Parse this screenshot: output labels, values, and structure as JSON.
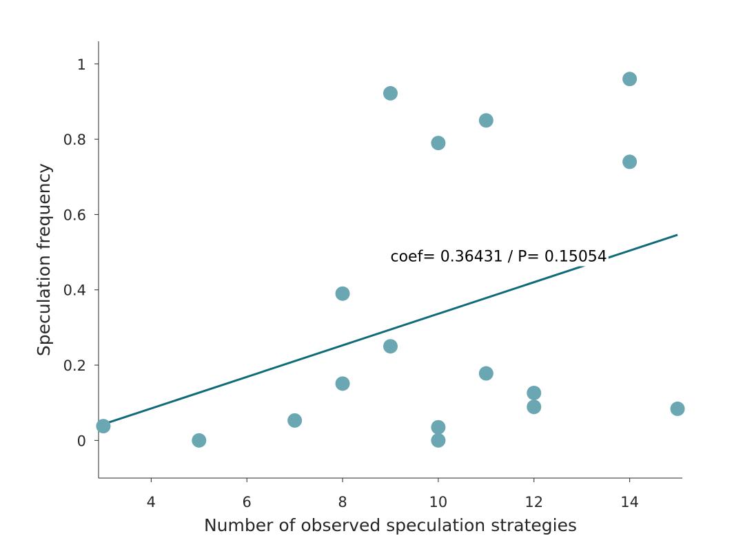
{
  "chart_data": {
    "type": "scatter",
    "title": "",
    "xlabel": "Number of observed speculation strategies",
    "ylabel": "Speculation frequency",
    "xlim": [
      2.9,
      15.1
    ],
    "ylim": [
      -0.1,
      1.06
    ],
    "xticks": [
      4,
      6,
      8,
      10,
      12,
      14
    ],
    "yticks": [
      0,
      0.2,
      0.4,
      0.6,
      0.8,
      1
    ],
    "grid": false,
    "series": [
      {
        "x": [
          3,
          5,
          7,
          8,
          8,
          9,
          9,
          10,
          10,
          10,
          11,
          11,
          12,
          12,
          14,
          14,
          15
        ],
        "y": [
          0.038,
          0.0,
          0.053,
          0.39,
          0.151,
          0.922,
          0.25,
          0.79,
          0.035,
          0.0,
          0.85,
          0.178,
          0.126,
          0.089,
          0.96,
          0.74,
          0.084
        ]
      }
    ],
    "fit_line": {
      "x": [
        3,
        15
      ],
      "y": [
        0.043,
        0.546
      ]
    },
    "annotation": {
      "text": "coef= 0.36431 / P= 0.15054",
      "x": 9,
      "y": 0.49
    },
    "colors": {
      "points": "#6aa7b3",
      "line": "#0f6b79",
      "axis": "#262626"
    }
  }
}
